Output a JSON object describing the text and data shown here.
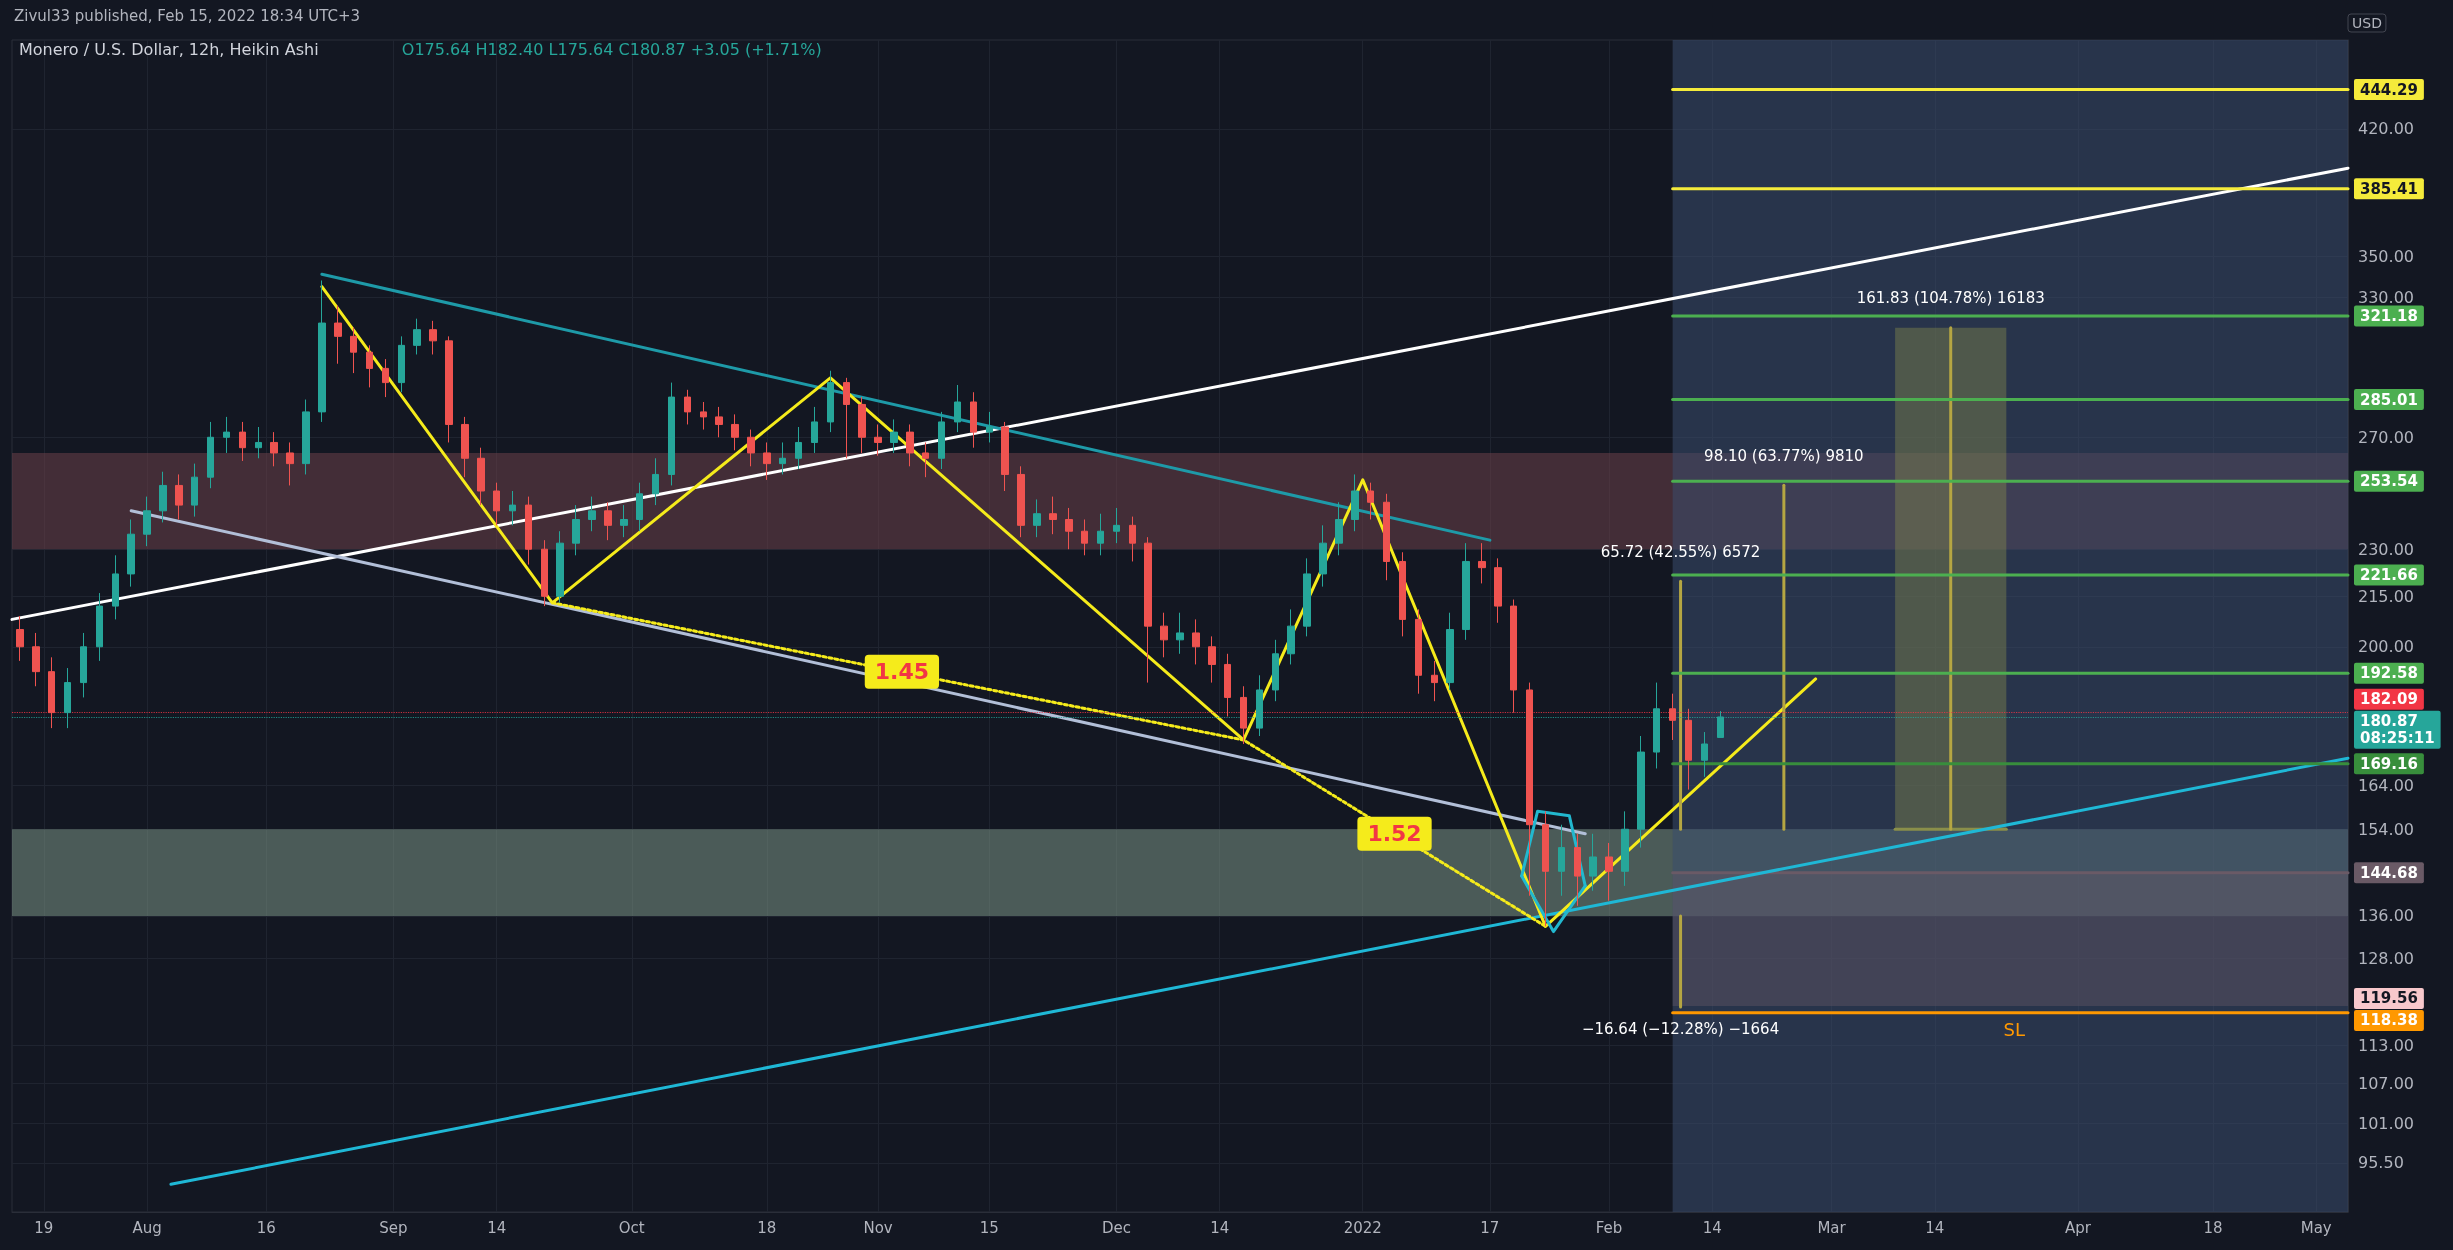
{
  "chart_data": {
    "type": "candlestick",
    "title": "Monero / U.S. Dollar, 12h, Heikin Ashi",
    "subtitle": "O175.64 H182.40 L175.64 C180.87 +3.05 (+1.71%)",
    "ylabel": "USD",
    "annotations": [
      "Zivul33 published, Feb 15, 2022 18:34 UTC+3",
      {
        "text": "1.45",
        "x": "2021-11-04",
        "y": 193
      },
      {
        "text": "1.52",
        "x": "2022-01-05",
        "y": 153
      },
      {
        "text": "65.72 (42.55%) 6572",
        "x": "2022-02-10",
        "y": 219.72
      },
      {
        "text": "98.10 (63.77%) 9810",
        "x": "2022-02-23",
        "y": 252.1
      },
      {
        "text": "161.83 (104.78%) 16183",
        "x": "2022-03-16",
        "y": 315.83
      },
      {
        "text": "−16.64 (−12.28%) −1664",
        "x": "2022-02-10",
        "y": 119.36
      },
      {
        "text": "SL",
        "x": "2022-03-24",
        "y": 118.38
      },
      {
        "text": "119.56",
        "x": "2022-05-05",
        "y": 119.56
      }
    ],
    "x": [
      "2021-07-16",
      "2021-07-18",
      "2021-07-20",
      "2021-07-22",
      "2021-07-24",
      "2021-07-26",
      "2021-07-28",
      "2021-07-30",
      "2021-08-01",
      "2021-08-03",
      "2021-08-05",
      "2021-08-07",
      "2021-08-09",
      "2021-08-11",
      "2021-08-13",
      "2021-08-15",
      "2021-08-17",
      "2021-08-19",
      "2021-08-21",
      "2021-08-23",
      "2021-08-25",
      "2021-08-27",
      "2021-08-29",
      "2021-08-31",
      "2021-09-02",
      "2021-09-04",
      "2021-09-06",
      "2021-09-08",
      "2021-09-10",
      "2021-09-12",
      "2021-09-14",
      "2021-09-16",
      "2021-09-18",
      "2021-09-20",
      "2021-09-22",
      "2021-09-24",
      "2021-09-26",
      "2021-09-28",
      "2021-09-30",
      "2021-10-02",
      "2021-10-04",
      "2021-10-06",
      "2021-10-08",
      "2021-10-10",
      "2021-10-12",
      "2021-10-14",
      "2021-10-16",
      "2021-10-18",
      "2021-10-20",
      "2021-10-22",
      "2021-10-24",
      "2021-10-26",
      "2021-10-28",
      "2021-10-30",
      "2021-11-01",
      "2021-11-03",
      "2021-11-05",
      "2021-11-07",
      "2021-11-09",
      "2021-11-11",
      "2021-11-13",
      "2021-11-15",
      "2021-11-17",
      "2021-11-19",
      "2021-11-21",
      "2021-11-23",
      "2021-11-25",
      "2021-11-27",
      "2021-11-29",
      "2021-12-01",
      "2021-12-03",
      "2021-12-05",
      "2021-12-07",
      "2021-12-09",
      "2021-12-11",
      "2021-12-13",
      "2021-12-15",
      "2021-12-17",
      "2021-12-19",
      "2021-12-21",
      "2021-12-23",
      "2021-12-25",
      "2021-12-27",
      "2021-12-29",
      "2021-12-31",
      "2022-01-02",
      "2022-01-04",
      "2022-01-06",
      "2022-01-08",
      "2022-01-10",
      "2022-01-12",
      "2022-01-14",
      "2022-01-16",
      "2022-01-18",
      "2022-01-20",
      "2022-01-22",
      "2022-01-24",
      "2022-01-26",
      "2022-01-28",
      "2022-01-30",
      "2022-02-01",
      "2022-02-03",
      "2022-02-05",
      "2022-02-07",
      "2022-02-09",
      "2022-02-11",
      "2022-02-13",
      "2022-02-15"
    ],
    "ohlc": [
      [
        205,
        209,
        196,
        200
      ],
      [
        200,
        204,
        189,
        193
      ],
      [
        193,
        197,
        178,
        182
      ],
      [
        182,
        194,
        178,
        190
      ],
      [
        190,
        204,
        186,
        200
      ],
      [
        200,
        216,
        196,
        212
      ],
      [
        212,
        228,
        208,
        222
      ],
      [
        222,
        240,
        218,
        235
      ],
      [
        235,
        248,
        231,
        243
      ],
      [
        243,
        257,
        239,
        252
      ],
      [
        252,
        256,
        240,
        245
      ],
      [
        245,
        260,
        241,
        255
      ],
      [
        255,
        276,
        251,
        270
      ],
      [
        270,
        278,
        264,
        272
      ],
      [
        272,
        276,
        261,
        266
      ],
      [
        266,
        274,
        262,
        268
      ],
      [
        268,
        272,
        259,
        264
      ],
      [
        264,
        268,
        252,
        260
      ],
      [
        260,
        285,
        256,
        280
      ],
      [
        280,
        338,
        276,
        318
      ],
      [
        318,
        326,
        300,
        312
      ],
      [
        312,
        316,
        296,
        305
      ],
      [
        305,
        308,
        290,
        298
      ],
      [
        298,
        302,
        286,
        292
      ],
      [
        292,
        312,
        288,
        308
      ],
      [
        308,
        320,
        304,
        315
      ],
      [
        315,
        319,
        304,
        310
      ],
      [
        310,
        312,
        268,
        275
      ],
      [
        275,
        278,
        255,
        262
      ],
      [
        262,
        266,
        245,
        250
      ],
      [
        250,
        253,
        238,
        243
      ],
      [
        243,
        250,
        238,
        245
      ],
      [
        245,
        248,
        225,
        230
      ],
      [
        230,
        233,
        212,
        215
      ],
      [
        215,
        236,
        213,
        232
      ],
      [
        232,
        245,
        228,
        240
      ],
      [
        240,
        248,
        236,
        243
      ],
      [
        243,
        246,
        233,
        238
      ],
      [
        238,
        245,
        234,
        240
      ],
      [
        240,
        253,
        236,
        249
      ],
      [
        249,
        262,
        245,
        256
      ],
      [
        256,
        292,
        252,
        286
      ],
      [
        286,
        289,
        275,
        280
      ],
      [
        280,
        284,
        273,
        278
      ],
      [
        278,
        282,
        270,
        275
      ],
      [
        275,
        279,
        265,
        270
      ],
      [
        270,
        273,
        259,
        264
      ],
      [
        264,
        268,
        254,
        260
      ],
      [
        260,
        268,
        256,
        262
      ],
      [
        262,
        274,
        258,
        268
      ],
      [
        268,
        282,
        264,
        276
      ],
      [
        276,
        297,
        272,
        292
      ],
      [
        292,
        294,
        262,
        283
      ],
      [
        283,
        286,
        264,
        270
      ],
      [
        270,
        275,
        263,
        268
      ],
      [
        268,
        277,
        264,
        272
      ],
      [
        272,
        275,
        259,
        264
      ],
      [
        264,
        268,
        255,
        262
      ],
      [
        262,
        280,
        258,
        276
      ],
      [
        276,
        291,
        272,
        284
      ],
      [
        284,
        288,
        266,
        272
      ],
      [
        272,
        280,
        268,
        274
      ],
      [
        274,
        276,
        250,
        256
      ],
      [
        256,
        259,
        234,
        238
      ],
      [
        238,
        247,
        234,
        242
      ],
      [
        242,
        248,
        235,
        240
      ],
      [
        240,
        244,
        230,
        236
      ],
      [
        236,
        240,
        228,
        232
      ],
      [
        232,
        242,
        228,
        236
      ],
      [
        236,
        244,
        232,
        238
      ],
      [
        238,
        241,
        226,
        232
      ],
      [
        232,
        234,
        190,
        206
      ],
      [
        206,
        210,
        197,
        202
      ],
      [
        202,
        210,
        198,
        204
      ],
      [
        204,
        208,
        195,
        200
      ],
      [
        200,
        203,
        190,
        195
      ],
      [
        195,
        198,
        181,
        186
      ],
      [
        186,
        189,
        174,
        178
      ],
      [
        178,
        192,
        176,
        188
      ],
      [
        188,
        202,
        185,
        198
      ],
      [
        198,
        211,
        195,
        206
      ],
      [
        206,
        227,
        203,
        222
      ],
      [
        222,
        238,
        218,
        232
      ],
      [
        232,
        246,
        228,
        240
      ],
      [
        240,
        256,
        236,
        250
      ],
      [
        250,
        253,
        240,
        246
      ],
      [
        246,
        249,
        220,
        226
      ],
      [
        226,
        229,
        203,
        208
      ],
      [
        208,
        211,
        187,
        192
      ],
      [
        192,
        196,
        185,
        190
      ],
      [
        190,
        210,
        188,
        205
      ],
      [
        205,
        232,
        202,
        226
      ],
      [
        226,
        232,
        219,
        224
      ],
      [
        224,
        227,
        207,
        212
      ],
      [
        212,
        214,
        182,
        188
      ],
      [
        188,
        190,
        140,
        155
      ],
      [
        155,
        158,
        134,
        145
      ],
      [
        145,
        155,
        140,
        150
      ],
      [
        150,
        153,
        138,
        144
      ],
      [
        144,
        153,
        141,
        148
      ],
      [
        148,
        151,
        139,
        145
      ],
      [
        145,
        158,
        142,
        154
      ],
      [
        154,
        176,
        150,
        172
      ],
      [
        172,
        190,
        168,
        183
      ],
      [
        183,
        187,
        175,
        180
      ],
      [
        180,
        183,
        163,
        170
      ],
      [
        170,
        177,
        166,
        174
      ],
      [
        175.64,
        182.4,
        175.64,
        180.87
      ]
    ],
    "colors": [
      "#ef5350",
      "#ef5350",
      "#ef5350",
      "#26a69a",
      "#26a69a",
      "#26a69a",
      "#26a69a",
      "#26a69a",
      "#26a69a",
      "#26a69a",
      "#ef5350",
      "#26a69a",
      "#26a69a",
      "#26a69a",
      "#ef5350",
      "#26a69a",
      "#ef5350",
      "#ef5350",
      "#26a69a",
      "#26a69a",
      "#ef5350",
      "#ef5350",
      "#ef5350",
      "#ef5350",
      "#26a69a",
      "#26a69a",
      "#ef5350",
      "#ef5350",
      "#ef5350",
      "#ef5350",
      "#ef5350",
      "#26a69a",
      "#ef5350",
      "#ef5350",
      "#26a69a",
      "#26a69a",
      "#26a69a",
      "#ef5350",
      "#26a69a",
      "#26a69a",
      "#26a69a",
      "#26a69a",
      "#ef5350",
      "#ef5350",
      "#ef5350",
      "#ef5350",
      "#ef5350",
      "#ef5350",
      "#26a69a",
      "#26a69a",
      "#26a69a",
      "#26a69a",
      "#ef5350",
      "#ef5350",
      "#ef5350",
      "#26a69a",
      "#ef5350",
      "#ef5350",
      "#26a69a",
      "#26a69a",
      "#ef5350",
      "#26a69a",
      "#ef5350",
      "#ef5350",
      "#26a69a",
      "#ef5350",
      "#ef5350",
      "#ef5350",
      "#26a69a",
      "#26a69a",
      "#ef5350",
      "#ef5350",
      "#ef5350",
      "#26a69a",
      "#ef5350",
      "#ef5350",
      "#ef5350",
      "#ef5350",
      "#26a69a",
      "#26a69a",
      "#26a69a",
      "#26a69a",
      "#26a69a",
      "#26a69a",
      "#26a69a",
      "#ef5350",
      "#ef5350",
      "#ef5350",
      "#ef5350",
      "#ef5350",
      "#26a69a",
      "#26a69a",
      "#ef5350",
      "#ef5350",
      "#ef5350",
      "#ef5350",
      "#ef5350",
      "#26a69a",
      "#ef5350",
      "#26a69a",
      "#ef5350",
      "#26a69a",
      "#26a69a",
      "#26a69a",
      "#ef5350",
      "#ef5350",
      "#26a69a",
      "#26a69a"
    ],
    "series": [
      {
        "type": "line",
        "x": [
          "2022-02-09",
          "2022-05-05"
        ],
        "values": [
          144.68,
          144.68
        ],
        "lower": [
          119.56,
          119.56
        ],
        "upper": [
          144.68,
          144.68
        ],
        "color": "#6a5a66",
        "value_labels": [
          null,
          "144.68"
        ]
      },
      {
        "type": "line",
        "x": [
          "2022-03-09",
          "2022-03-23"
        ],
        "values": [
          154,
          154
        ],
        "lower": [
          154,
          154
        ],
        "upper": [
          315.83,
          315.83
        ],
        "color": "#8a8f4a"
      },
      {
        "type": "line",
        "x": [
          "2021-07-15",
          "2022-05-05"
        ],
        "values": [
          208,
          397
        ],
        "color": "#ffffff"
      },
      {
        "type": "line",
        "x": [
          "2021-08-04",
          "2022-05-05"
        ],
        "values": [
          92.6,
          170.5
        ],
        "color": "#1fb8d6"
      },
      {
        "type": "line",
        "x": [
          "2021-08-23",
          "2022-01-17"
        ],
        "values": [
          341,
          233
        ],
        "color": "#1e9aa8"
      },
      {
        "type": "line",
        "x": [
          "2021-07-30",
          "2022-01-29"
        ],
        "values": [
          243,
          153
        ],
        "color": "#b2bfd8"
      },
      {
        "type": "line",
        "x": [
          "2021-08-23",
          "2021-09-21",
          "2021-10-26",
          "2021-12-17",
          "2022-01-01",
          "2022-01-24",
          "2022-02-27"
        ],
        "values": [
          335,
          213,
          294,
          175,
          254,
          134,
          191
        ],
        "color": "#f5eb1b"
      },
      {
        "type": "line",
        "x": [
          "2021-09-21",
          "2021-12-17",
          "2022-01-24"
        ],
        "values": [
          213,
          175,
          134
        ],
        "color": "#f5eb1b",
        "line_style": "dotted"
      },
      {
        "type": "line",
        "x": [
          "2022-01-21",
          "2022-01-23",
          "2022-01-27",
          "2022-01-29"
        ],
        "values": [
          144,
          158,
          157,
          142
        ],
        "color": "#22b8cf"
      },
      {
        "type": "line",
        "x": [
          "2022-01-21",
          "2022-01-25",
          "2022-01-29"
        ],
        "values": [
          144,
          133,
          142
        ],
        "color": "#22b8cf"
      },
      {
        "type": "line",
        "x": [
          "2022-02-10",
          "2022-02-10"
        ],
        "values": [
          154,
          219.72
        ],
        "color": "#b5a642"
      },
      {
        "type": "line",
        "x": [
          "2022-02-23",
          "2022-02-23"
        ],
        "values": [
          154,
          252.1
        ],
        "color": "#b5a642"
      },
      {
        "type": "line",
        "x": [
          "2022-03-16",
          "2022-03-16"
        ],
        "values": [
          154,
          315.83
        ],
        "color": "#b5a642"
      },
      {
        "type": "line",
        "x": [
          "2022-02-10",
          "2022-02-10"
        ],
        "values": [
          136,
          119.36
        ],
        "color": "#b5a642"
      },
      {
        "type": "line",
        "x": [
          "2022-02-09",
          "2022-05-05"
        ],
        "values": [
          444.29,
          444.29
        ],
        "color": "#f5eb3b",
        "value_labels": [
          null,
          "444.29"
        ]
      },
      {
        "type": "line",
        "x": [
          "2022-02-09",
          "2022-05-05"
        ],
        "values": [
          385.41,
          385.41
        ],
        "color": "#f5eb3b",
        "value_labels": [
          null,
          "385.41"
        ]
      },
      {
        "type": "line",
        "x": [
          "2022-02-09",
          "2022-05-05"
        ],
        "values": [
          321.18,
          321.18
        ],
        "color": "#4caf50",
        "value_labels": [
          null,
          "321.18"
        ]
      },
      {
        "type": "line",
        "x": [
          "2022-02-09",
          "2022-05-05"
        ],
        "values": [
          285.01,
          285.01
        ],
        "color": "#4caf50",
        "value_labels": [
          null,
          "285.01"
        ]
      },
      {
        "type": "line",
        "x": [
          "2022-02-09",
          "2022-05-05"
        ],
        "values": [
          253.54,
          253.54
        ],
        "color": "#4caf50",
        "value_labels": [
          null,
          "253.54"
        ]
      },
      {
        "type": "line",
        "x": [
          "2022-02-09",
          "2022-05-05"
        ],
        "values": [
          221.66,
          221.66
        ],
        "color": "#4caf50",
        "value_labels": [
          null,
          "221.66"
        ]
      },
      {
        "type": "line",
        "x": [
          "2022-02-09",
          "2022-05-05"
        ],
        "values": [
          192.58,
          192.58
        ],
        "color": "#4caf50",
        "value_labels": [
          null,
          "192.58"
        ]
      },
      {
        "type": "line",
        "x": [
          "2022-02-09",
          "2022-05-05"
        ],
        "values": [
          169.16,
          169.16
        ],
        "color": "#388e3c",
        "value_labels": [
          null,
          "169.16"
        ]
      },
      {
        "type": "line",
        "x": [
          "2022-02-09",
          "2022-05-05"
        ],
        "values": [
          118.38,
          118.38
        ],
        "color": "#ff9800",
        "value_labels": [
          null,
          "118.38"
        ]
      }
    ],
    "bands": [
      {
        "axis": "y",
        "from": 230,
        "to": 264,
        "color": "#6b4048"
      },
      {
        "axis": "y",
        "from": 136,
        "to": 154,
        "color": "#7a9485"
      },
      {
        "axis": "x",
        "from": "2022-02-09",
        "to": "2022-05-05",
        "color": "#3b4d6e"
      }
    ],
    "ref_lines": [
      {
        "axis": "y",
        "value": 182.09,
        "label": "182.09",
        "color": "#f23645",
        "line_style": "dotted"
      },
      {
        "axis": "y",
        "value": 180.87,
        "label": "180.87\n08:25:11",
        "color": "#26a69a",
        "line_style": "dotted"
      }
    ],
    "xlim": [
      "2021-07-15",
      "2022-05-05"
    ],
    "xticks": [
      {
        "value": "2021-07-19",
        "label": "19"
      },
      {
        "value": "2021-08-01",
        "label": "Aug"
      },
      {
        "value": "2021-08-16",
        "label": "16"
      },
      {
        "value": "2021-09-01",
        "label": "Sep"
      },
      {
        "value": "2021-09-14",
        "label": "14"
      },
      {
        "value": "2021-10-01",
        "label": "Oct"
      },
      {
        "value": "2021-10-18",
        "label": "18"
      },
      {
        "value": "2021-11-01",
        "label": "Nov"
      },
      {
        "value": "2021-11-15",
        "label": "15"
      },
      {
        "value": "2021-12-01",
        "label": "Dec"
      },
      {
        "value": "2021-12-14",
        "label": "14"
      },
      {
        "value": "2022-01-01",
        "label": "2022"
      },
      {
        "value": "2022-01-17",
        "label": "17"
      },
      {
        "value": "2022-02-01",
        "label": "Feb"
      },
      {
        "value": "2022-02-14",
        "label": "14"
      },
      {
        "value": "2022-03-01",
        "label": "Mar"
      },
      {
        "value": "2022-03-14",
        "label": "14"
      },
      {
        "value": "2022-04-01",
        "label": "Apr"
      },
      {
        "value": "2022-04-18",
        "label": "18"
      },
      {
        "value": "2022-05-01",
        "label": "May"
      }
    ],
    "ylim": [
      89,
      477
    ],
    "yticks": [
      {
        "value": 95.5,
        "label": "95.50"
      },
      {
        "value": 101,
        "label": "101.00"
      },
      {
        "value": 107,
        "label": "107.00"
      },
      {
        "value": 113,
        "label": "113.00"
      },
      {
        "value": 128,
        "label": "128.00"
      },
      {
        "value": 136,
        "label": "136.00"
      },
      {
        "value": 154,
        "label": "154.00"
      },
      {
        "value": 164,
        "label": "164.00"
      },
      {
        "value": 200,
        "label": "200.00"
      },
      {
        "value": 215,
        "label": "215.00"
      },
      {
        "value": 230,
        "label": "230.00"
      },
      {
        "value": 270,
        "label": "270.00"
      },
      {
        "value": 330,
        "label": "330.00"
      },
      {
        "value": 350,
        "label": "350.00"
      },
      {
        "value": 420,
        "label": "420.00"
      }
    ],
    "log": "y",
    "grid": true
  }
}
